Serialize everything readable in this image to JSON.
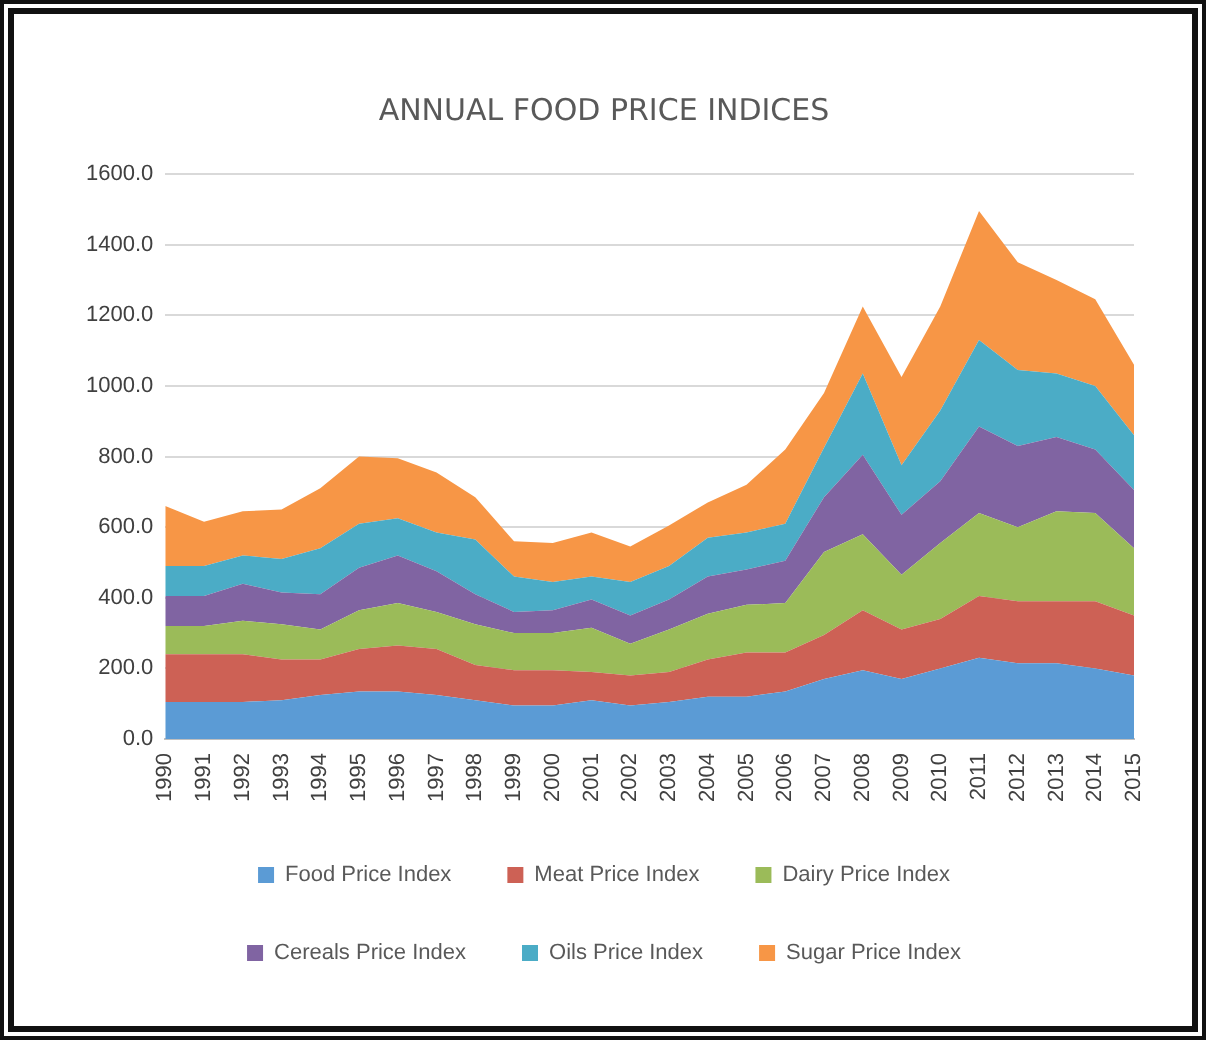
{
  "chart_data": {
    "type": "area",
    "stacked": true,
    "title": "ANNUAL FOOD PRICE INDICES",
    "categories": [
      "1990",
      "1991",
      "1992",
      "1993",
      "1994",
      "1995",
      "1996",
      "1997",
      "1998",
      "1999",
      "2000",
      "2001",
      "2002",
      "2003",
      "2004",
      "2005",
      "2006",
      "2007",
      "2008",
      "2009",
      "2010",
      "2011",
      "2012",
      "2013",
      "2014",
      "2015"
    ],
    "series": [
      {
        "name": "Food Price Index",
        "color": "#5b9bd5",
        "values": [
          105,
          105,
          105,
          110,
          125,
          135,
          135,
          125,
          110,
          95,
          95,
          110,
          95,
          105,
          120,
          120,
          135,
          170,
          195,
          170,
          200,
          230,
          215,
          215,
          200,
          180
        ]
      },
      {
        "name": "Meat Price Index",
        "color": "#cd6155",
        "values": [
          135,
          135,
          135,
          115,
          100,
          120,
          130,
          130,
          100,
          100,
          100,
          80,
          85,
          85,
          105,
          125,
          110,
          125,
          170,
          140,
          140,
          175,
          175,
          175,
          190,
          170
        ]
      },
      {
        "name": "Dairy Price Index",
        "color": "#9bbb59",
        "values": [
          80,
          80,
          95,
          100,
          85,
          110,
          120,
          105,
          115,
          105,
          105,
          125,
          90,
          120,
          130,
          135,
          140,
          235,
          215,
          155,
          215,
          235,
          210,
          255,
          250,
          190
        ]
      },
      {
        "name": "Cereals Price Index",
        "color": "#8064a2",
        "values": [
          85,
          85,
          105,
          90,
          100,
          120,
          135,
          115,
          85,
          60,
          65,
          80,
          80,
          85,
          105,
          100,
          120,
          155,
          225,
          170,
          175,
          245,
          230,
          210,
          180,
          165
        ]
      },
      {
        "name": "Oils Price Index",
        "color": "#4bacc6",
        "values": [
          85,
          85,
          80,
          95,
          130,
          125,
          105,
          110,
          155,
          100,
          80,
          65,
          95,
          95,
          110,
          105,
          105,
          140,
          230,
          140,
          200,
          245,
          215,
          180,
          180,
          155
        ]
      },
      {
        "name": "Sugar Price Index",
        "color": "#f79646",
        "values": [
          170,
          125,
          125,
          140,
          170,
          190,
          170,
          170,
          120,
          100,
          110,
          125,
          100,
          115,
          100,
          135,
          210,
          155,
          190,
          250,
          295,
          365,
          305,
          265,
          245,
          200
        ]
      }
    ],
    "ylim": [
      0,
      1600
    ],
    "yticks": [
      {
        "value": 0,
        "label": "0.0"
      },
      {
        "value": 200,
        "label": "200.0"
      },
      {
        "value": 400,
        "label": "400.0"
      },
      {
        "value": 600,
        "label": "600.0"
      },
      {
        "value": 800,
        "label": "800.0"
      },
      {
        "value": 1000,
        "label": "1000.0"
      },
      {
        "value": 1200,
        "label": "1200.0"
      },
      {
        "value": 1400,
        "label": "1400.0"
      },
      {
        "value": 1600,
        "label": "1600.0"
      }
    ],
    "grid": "y",
    "legend": "bottom"
  }
}
